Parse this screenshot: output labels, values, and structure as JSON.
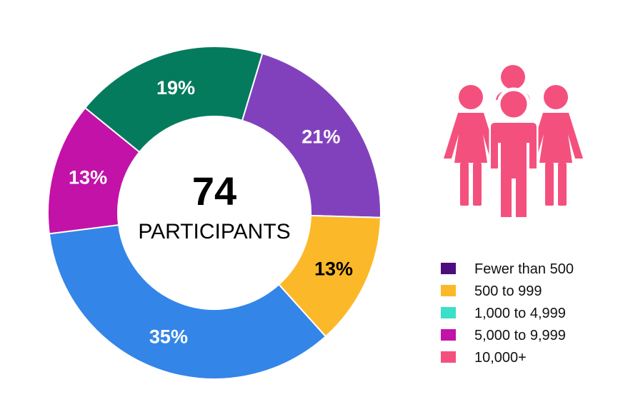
{
  "chart_data": {
    "type": "pie",
    "center": {
      "value": "74",
      "caption": "PARTICIPANTS"
    },
    "slices": [
      {
        "label": "35%",
        "value": 35,
        "color": "#3385E8",
        "label_color": "#FFFFFF"
      },
      {
        "label": "13%",
        "value": 13,
        "color": "#C212A7",
        "label_color": "#FFFFFF"
      },
      {
        "label": "19%",
        "value": 19,
        "color": "#057B5E",
        "label_color": "#FFFFFF"
      },
      {
        "label": "21%",
        "value": 21,
        "color": "#8241BC",
        "label_color": "#FFFFFF"
      },
      {
        "label": "13%",
        "value": 13,
        "color": "#FBB92A",
        "label_color": "#000000"
      }
    ],
    "legend": [
      {
        "label": "Fewer than 500",
        "color": "#4B0E7C"
      },
      {
        "label": "500 to 999",
        "color": "#FBB92A"
      },
      {
        "label": "1,000 to 4,999",
        "color": "#3AE0C8"
      },
      {
        "label": "5,000 to 9,999",
        "color": "#C212A7"
      },
      {
        "label": "10,000+",
        "color": "#F4507E"
      }
    ],
    "legend_position": "bottom-right"
  },
  "icon": {
    "name": "people-group-icon",
    "color": "#F4507E"
  }
}
